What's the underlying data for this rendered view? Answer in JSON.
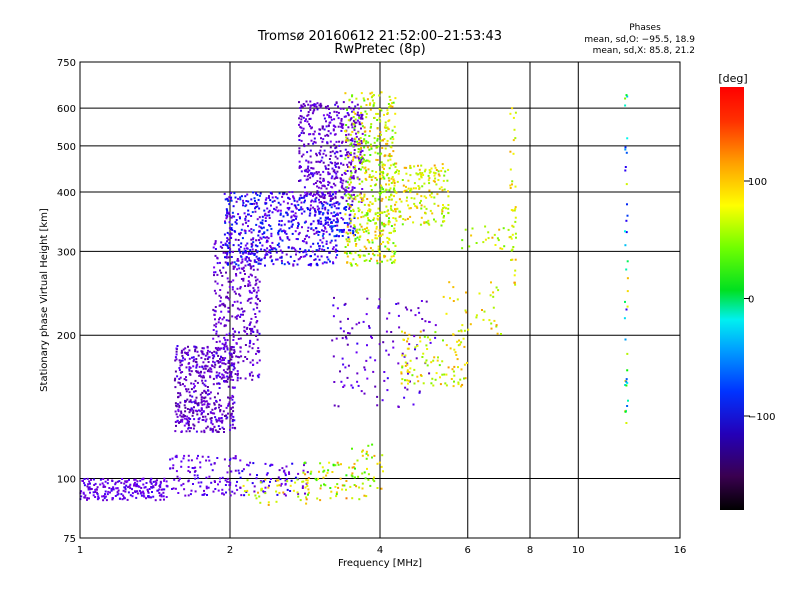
{
  "chart_data": {
    "type": "scatter",
    "title": "Tromsø 20160612 21:52:00–21:53:43",
    "subtitle": "RwPretec (8p)",
    "xlabel": "Frequency [MHz]",
    "ylabel": "Stationary phase Virtual Height [km]",
    "xscale": "log",
    "yscale": "log",
    "xlim": [
      1,
      16
    ],
    "ylim": [
      75,
      750
    ],
    "x_ticks": [
      1,
      2,
      4,
      6,
      8,
      10,
      16
    ],
    "x_tick_labels": [
      "1",
      "2",
      "4",
      "6",
      "8",
      "10",
      "16"
    ],
    "y_ticks": [
      75,
      100,
      200,
      300,
      400,
      500,
      600,
      750
    ],
    "y_tick_labels": [
      "75",
      "100",
      "200",
      "300",
      "400",
      "500",
      "600",
      "750"
    ],
    "grid": true,
    "info_title": "Phases",
    "info_line1": "mean, sd,O: −95.5, 18.9",
    "info_line2": "mean, sd,X:  85.8, 21.2",
    "colorbar": {
      "label": "[deg]",
      "range": [
        -180,
        180
      ],
      "ticks": [
        100,
        0,
        -100
      ],
      "tick_labels": [
        "100",
        "0",
        "−100"
      ]
    },
    "clusters": [
      {
        "x": [
          1.0,
          1.5
        ],
        "y": [
          90,
          100
        ],
        "phase": [
          -120,
          -90
        ],
        "n": 220
      },
      {
        "x": [
          1.5,
          2.1
        ],
        "y": [
          92,
          112
        ],
        "phase": [
          -120,
          -90
        ],
        "n": 120
      },
      {
        "x": [
          2.1,
          2.9
        ],
        "y": [
          92,
          108
        ],
        "phase": [
          -120,
          -80
        ],
        "n": 70
      },
      {
        "x": [
          2.1,
          2.9
        ],
        "y": [
          88,
          100
        ],
        "phase": [
          90,
          140
        ],
        "n": 45
      },
      {
        "x": [
          2.8,
          3.8
        ],
        "y": [
          90,
          108
        ],
        "phase": [
          60,
          150
        ],
        "n": 70
      },
      {
        "x": [
          3.5,
          4.1
        ],
        "y": [
          95,
          118
        ],
        "phase": [
          70,
          140
        ],
        "n": 35
      },
      {
        "x": [
          1.55,
          2.05
        ],
        "y": [
          125,
          190
        ],
        "phase": [
          -150,
          -90
        ],
        "n": 480
      },
      {
        "x": [
          1.85,
          2.3
        ],
        "y": [
          160,
          320
        ],
        "phase": [
          -140,
          -90
        ],
        "n": 340
      },
      {
        "x": [
          1.95,
          3.3
        ],
        "y": [
          280,
          400
        ],
        "phase": [
          -120,
          -60
        ],
        "n": 600
      },
      {
        "x": [
          2.75,
          3.7
        ],
        "y": [
          380,
          620
        ],
        "phase": [
          -140,
          -90
        ],
        "n": 480
      },
      {
        "x": [
          3.0,
          3.6
        ],
        "y": [
          320,
          380
        ],
        "phase": [
          -110,
          -50
        ],
        "n": 90
      },
      {
        "x": [
          3.4,
          4.3
        ],
        "y": [
          280,
          650
        ],
        "phase": [
          70,
          140
        ],
        "n": 480
      },
      {
        "x": [
          4.0,
          5.5
        ],
        "y": [
          340,
          460
        ],
        "phase": [
          80,
          140
        ],
        "n": 220
      },
      {
        "x": [
          3.2,
          5.2
        ],
        "y": [
          140,
          240
        ],
        "phase": [
          -140,
          -90
        ],
        "n": 120
      },
      {
        "x": [
          4.4,
          6.0
        ],
        "y": [
          155,
          205
        ],
        "phase": [
          80,
          140
        ],
        "n": 110
      },
      {
        "x": [
          5.3,
          7.0
        ],
        "y": [
          200,
          260
        ],
        "phase": [
          90,
          140
        ],
        "n": 35
      },
      {
        "x": [
          5.8,
          7.5
        ],
        "y": [
          300,
          340
        ],
        "phase": [
          80,
          140
        ],
        "n": 25
      },
      {
        "x": [
          7.3,
          7.5
        ],
        "y": [
          250,
          600
        ],
        "phase": [
          90,
          140
        ],
        "n": 40
      },
      {
        "x": [
          12.4,
          12.6
        ],
        "y": [
          120,
          650
        ],
        "phase": [
          -90,
          140
        ],
        "n": 40
      }
    ]
  }
}
